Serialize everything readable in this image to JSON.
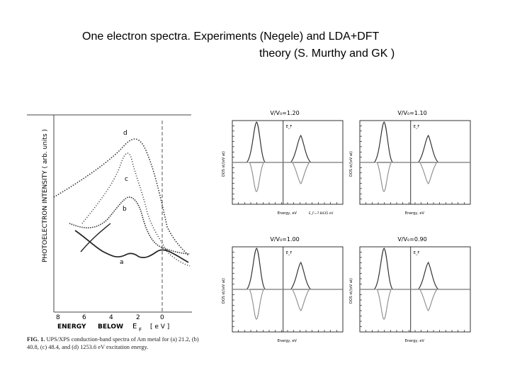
{
  "title": {
    "line1": "One electron spectra. Experiments (Negele) and LDA+DFT",
    "line2": "theory  (S. Murthy and GK )"
  },
  "experiment": {
    "y_axis_label": "PHOTOELECTRON   INTENSITY   ( arb. units )",
    "x_ticks": [
      "8",
      "6",
      "4",
      "2",
      "0"
    ],
    "x_label_parts": [
      "ENERGY",
      "BELOW",
      "E",
      "F",
      "[ e V ]"
    ],
    "curve_labels": [
      "d",
      "c",
      "b",
      "a"
    ],
    "caption_label": "FIG. 1.",
    "caption_text": "UPS/XPS conduction-band spectra of Am metal for (a) 21.2, (b) 40.8, (c) 48.4, and (d) 1253.6 eV excitation energy."
  },
  "theory_panels": [
    {
      "title": "V/V₀=1.20",
      "x_label": "Energy, eV",
      "y_label": "DOS st/(eV at)",
      "fermi_label": "E_F",
      "footer": "E_F=7.8435 eV"
    },
    {
      "title": "V/V₀=1.10",
      "x_label": "Energy, eV",
      "y_label": "DOS st/(eV at)",
      "fermi_label": "E_F",
      "footer": ""
    },
    {
      "title": "V/V₀=1.00",
      "x_label": "Energy, eV",
      "y_label": "DOS st/(eV at)",
      "fermi_label": "E_F",
      "footer": ""
    },
    {
      "title": "V/V₀=0.90",
      "x_label": "Energy, eV",
      "y_label": "DOS st/(eV at)",
      "fermi_label": "E_F",
      "footer": ""
    }
  ],
  "colors": {
    "ink": "#000000",
    "curve": "#333333",
    "minority": "#8a8a8a"
  }
}
